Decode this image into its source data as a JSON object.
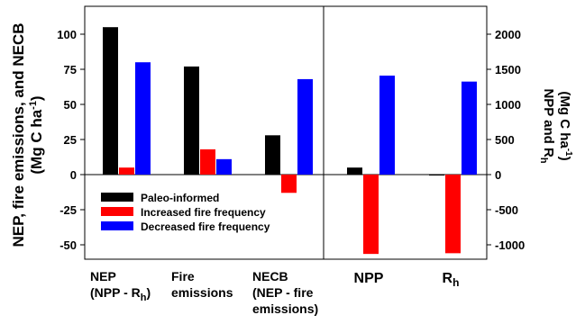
{
  "chart_data": [
    {
      "type": "bar",
      "panel": "left",
      "categories": [
        "NEP (NPP - Rh)",
        "Fire emissions",
        "NECB (NEP - fire emissions)"
      ],
      "category_lines": [
        [
          "NEP",
          "(NPP - R",
          "h",
          ")"
        ],
        [
          "Fire",
          "emissions"
        ],
        [
          "NECB",
          "(NEP - fire",
          "emissions)"
        ]
      ],
      "series": [
        {
          "name": "Paleo-informed",
          "color": "#000000",
          "values": [
            105,
            77,
            28
          ]
        },
        {
          "name": "Increased fire frequency",
          "color": "#ff0000",
          "values": [
            5,
            18,
            -13
          ]
        },
        {
          "name": "Decreased fire frequency",
          "color": "#0000ff",
          "values": [
            80,
            11,
            68
          ]
        }
      ],
      "ylim": [
        -60,
        120
      ],
      "yticks": [
        -50,
        -25,
        0,
        25,
        50,
        75,
        100
      ],
      "ylabel_lines": [
        "NEP,  fire emissions, and NECB",
        "(Mg C ha",
        "-1",
        ")"
      ]
    },
    {
      "type": "bar",
      "panel": "right",
      "categories": [
        "NPP",
        "Rh"
      ],
      "series": [
        {
          "name": "Paleo-informed",
          "color": "#000000",
          "values": [
            100,
            -10
          ]
        },
        {
          "name": "Increased fire frequency",
          "color": "#ff0000",
          "values": [
            -1130,
            -1120
          ]
        },
        {
          "name": "Decreased fire frequency",
          "color": "#0000ff",
          "values": [
            1410,
            1325
          ]
        }
      ],
      "ylim": [
        -1200,
        2400
      ],
      "yticks": [
        -1000,
        -500,
        0,
        500,
        1000,
        1500,
        2000
      ],
      "ylabel_lines": [
        "NPP and R",
        "h",
        "(Mg C ha",
        "-1",
        ")"
      ]
    }
  ],
  "legend": {
    "placement": "lower-left",
    "entries": [
      {
        "label": "Paleo-informed",
        "color": "#000000"
      },
      {
        "label": "Increased fire frequency",
        "color": "#ff0000"
      },
      {
        "label": "Decreased fire frequency",
        "color": "#0000ff"
      }
    ]
  }
}
